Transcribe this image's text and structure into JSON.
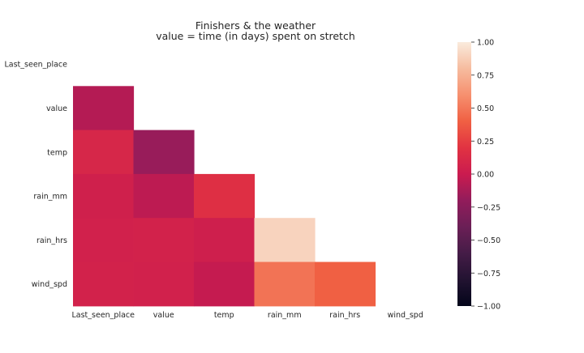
{
  "chart_data": {
    "type": "heatmap",
    "title": "Finishers & the weather",
    "subtitle": "value = time (in days) spent on stretch",
    "row_labels": [
      "Last_seen_place",
      "value",
      "temp",
      "rain_mm",
      "rain_hrs",
      "wind_spd"
    ],
    "col_labels": [
      "Last_seen_place",
      "value",
      "temp",
      "rain_mm",
      "rain_hrs",
      "wind_spd"
    ],
    "mask": "upper-triangle-including-diagonal",
    "values": [
      [
        null,
        null,
        null,
        null,
        null,
        null
      ],
      [
        -0.08,
        null,
        null,
        null,
        null,
        null
      ],
      [
        0.1,
        -0.18,
        null,
        null,
        null,
        null
      ],
      [
        0.04,
        -0.05,
        0.17,
        null,
        null,
        null
      ],
      [
        0.05,
        0.06,
        0.03,
        0.9,
        null,
        null
      ],
      [
        0.06,
        0.05,
        -0.02,
        0.48,
        0.4,
        null
      ]
    ],
    "colormap": "rocket",
    "vmin": -1.0,
    "vmax": 1.0,
    "colorbar_ticks": [
      "1.00",
      "0.75",
      "0.50",
      "0.25",
      "0.00",
      "−0.25",
      "−0.50",
      "−0.75",
      "−1.00"
    ],
    "colorbar_tick_values": [
      1.0,
      0.75,
      0.5,
      0.25,
      0.0,
      -0.25,
      -0.5,
      -0.75,
      -1.0
    ],
    "grid": false
  }
}
